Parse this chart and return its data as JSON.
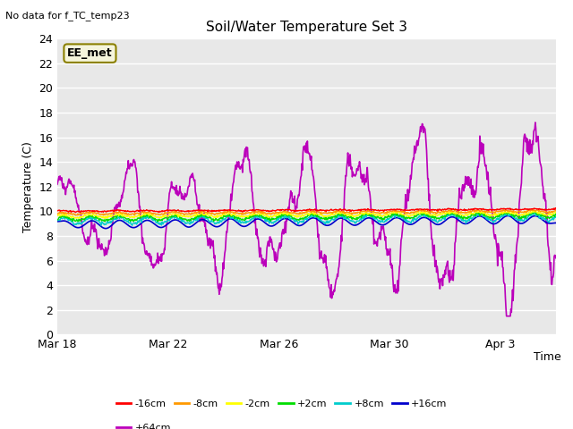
{
  "title": "Soil/Water Temperature Set 3",
  "top_left_note": "No data for f_TC_temp23",
  "xlabel": "Time",
  "ylabel": "Temperature (C)",
  "ylim": [
    0,
    24
  ],
  "yticks": [
    0,
    2,
    4,
    6,
    8,
    10,
    12,
    14,
    16,
    18,
    20,
    22,
    24
  ],
  "plot_bg_color": "#e8e8e8",
  "legend_label": "EE_met",
  "legend_bg": "#f5f5dc",
  "legend_border": "#8b8000",
  "series_colors": {
    "-16cm": "#ff0000",
    "-8cm": "#ff9900",
    "-2cm": "#ffff00",
    "+2cm": "#00dd00",
    "+8cm": "#00cccc",
    "+16cm": "#0000cc",
    "+64cm": "#bb00bb"
  },
  "xtick_labels": [
    "Mar 18",
    "Mar 22",
    "Mar 26",
    "Mar 30",
    "Apr 3"
  ],
  "xtick_positions": [
    0,
    4,
    8,
    12,
    16
  ]
}
